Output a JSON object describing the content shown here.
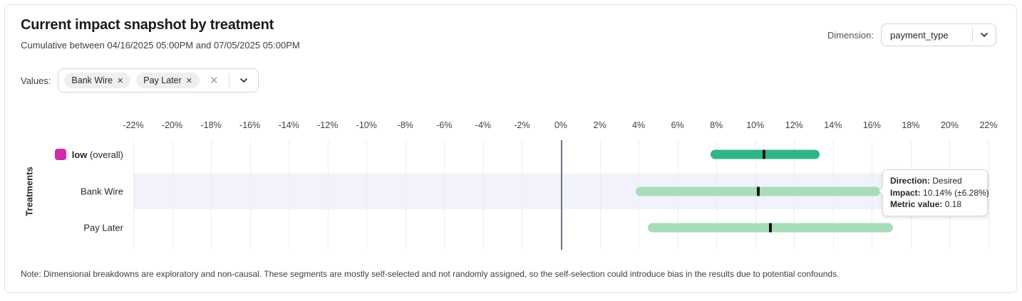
{
  "header": {
    "title": "Current impact snapshot by treatment",
    "subtitle": "Cumulative between 04/16/2025 05:00PM and 07/05/2025 05:00PM",
    "dimension_label": "Dimension:",
    "dimension_value": "payment_type"
  },
  "filters": {
    "values_label": "Values:",
    "chips": [
      {
        "label": "Bank Wire"
      },
      {
        "label": "Pay Later"
      }
    ],
    "clear_icon": "✕",
    "chip_remove_icon": "✕"
  },
  "chart_data": {
    "type": "bar",
    "subtype": "horizontal-range-interval",
    "title": "Current impact snapshot by treatment",
    "xlabel": "",
    "ylabel": "Treatments",
    "x_ticks": [
      "-22%",
      "-20%",
      "-18%",
      "-16%",
      "-14%",
      "-12%",
      "-10%",
      "-8%",
      "-6%",
      "-4%",
      "-2%",
      "0%",
      "2%",
      "4%",
      "6%",
      "8%",
      "10%",
      "12%",
      "14%",
      "16%",
      "18%",
      "20%",
      "22%"
    ],
    "xlim": [
      -22,
      22
    ],
    "grid": true,
    "zero_line": true,
    "colors": {
      "overall_bar": "#2fb685",
      "segment_bar": "#a8dcba",
      "overall_swatch": "#d12ba6",
      "marker": "#101418",
      "highlight_band": "#f2f2fc"
    },
    "rows": [
      {
        "label": "low",
        "label_suffix": "(overall)",
        "impact_pct": 10.46,
        "ci_pct": 2.79,
        "range_pct": [
          7.7,
          13.3
        ],
        "bar_color": "#2fb685",
        "swatch": "#d12ba6",
        "highlighted": false
      },
      {
        "label": "Bank Wire",
        "label_suffix": "",
        "impact_pct": 10.14,
        "ci_pct": 6.28,
        "range_pct": [
          3.86,
          16.42
        ],
        "bar_color": "#a8dcba",
        "swatch": "",
        "highlighted": true
      },
      {
        "label": "Pay Later",
        "label_suffix": "",
        "impact_pct": 10.79,
        "ci_pct": 6.31,
        "range_pct": [
          4.48,
          17.1
        ],
        "bar_color": "#a8dcba",
        "swatch": "",
        "highlighted": false
      }
    ]
  },
  "tooltip": {
    "direction_label": "Direction:",
    "direction_value": "Desired",
    "impact_label": "Impact:",
    "impact_value": "10.14% (±6.28%)",
    "metric_label": "Metric value:",
    "metric_value": "0.18"
  },
  "note": "Note: Dimensional breakdowns are exploratory and non-causal. These segments are mostly self-selected and not randomly assigned, so the self-selection could introduce bias in the results due to potential confounds."
}
